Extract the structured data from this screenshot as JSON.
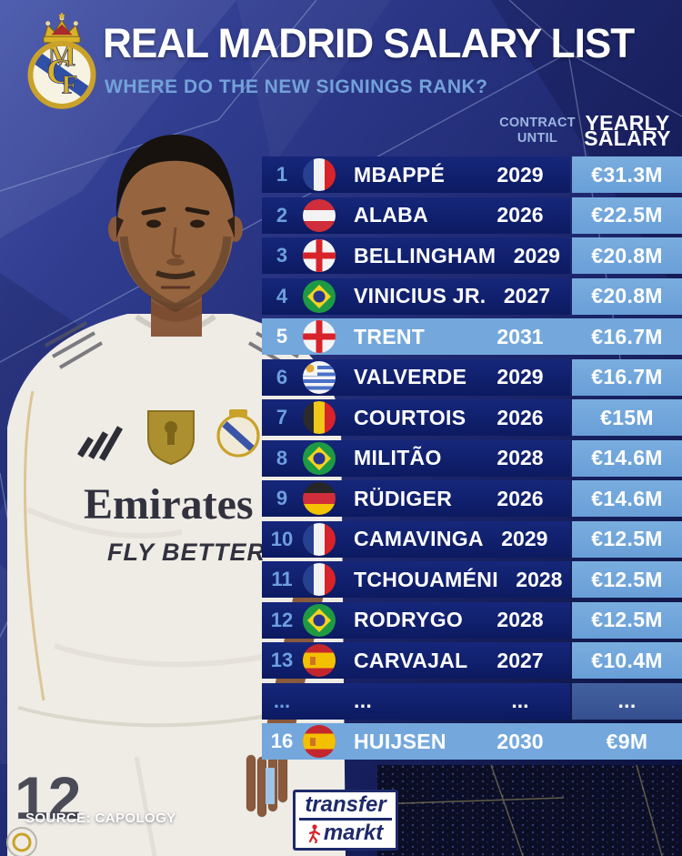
{
  "header": {
    "title": "REAL MADRID SALARY LIST",
    "subtitle": "WHERE DO THE NEW SIGNINGS RANK?",
    "crest_icon": "real-madrid-crest"
  },
  "table": {
    "columns": {
      "contract": [
        "CONTRACT",
        "UNTIL"
      ],
      "salary": [
        "YEARLY",
        "SALARY"
      ]
    },
    "rows": [
      {
        "rank": "1",
        "flag": "france",
        "name": "MBAPPÉ",
        "contract": "2029",
        "salary": "€31.3M",
        "highlight": false
      },
      {
        "rank": "2",
        "flag": "austria",
        "name": "ALABA",
        "contract": "2026",
        "salary": "€22.5M",
        "highlight": false
      },
      {
        "rank": "3",
        "flag": "england",
        "name": "BELLINGHAM",
        "contract": "2029",
        "salary": "€20.8M",
        "highlight": false
      },
      {
        "rank": "4",
        "flag": "brazil",
        "name": "VINICIUS JR.",
        "contract": "2027",
        "salary": "€20.8M",
        "highlight": false
      },
      {
        "rank": "5",
        "flag": "england",
        "name": "TRENT",
        "contract": "2031",
        "salary": "€16.7M",
        "highlight": true
      },
      {
        "rank": "6",
        "flag": "uruguay",
        "name": "VALVERDE",
        "contract": "2029",
        "salary": "€16.7M",
        "highlight": false
      },
      {
        "rank": "7",
        "flag": "belgium",
        "name": "COURTOIS",
        "contract": "2026",
        "salary": "€15M",
        "highlight": false
      },
      {
        "rank": "8",
        "flag": "brazil",
        "name": "MILITÃO",
        "contract": "2028",
        "salary": "€14.6M",
        "highlight": false
      },
      {
        "rank": "9",
        "flag": "germany",
        "name": "RÜDIGER",
        "contract": "2026",
        "salary": "€14.6M",
        "highlight": false
      },
      {
        "rank": "10",
        "flag": "france",
        "name": "CAMAVINGA",
        "contract": "2029",
        "salary": "€12.5M",
        "highlight": false
      },
      {
        "rank": "11",
        "flag": "france",
        "name": "TCHOUAMÉNI",
        "contract": "2028",
        "salary": "€12.5M",
        "highlight": false
      },
      {
        "rank": "12",
        "flag": "brazil",
        "name": "RODRYGO",
        "contract": "2028",
        "salary": "€12.5M",
        "highlight": false
      },
      {
        "rank": "13",
        "flag": "spain",
        "name": "CARVAJAL",
        "contract": "2027",
        "salary": "€10.4M",
        "highlight": false
      },
      {
        "rank": "...",
        "flag": null,
        "name": "...",
        "contract": "...",
        "salary": "...",
        "highlight": false,
        "ellipsis": true
      },
      {
        "rank": "16",
        "flag": "spain",
        "name": "HUIJSEN",
        "contract": "2030",
        "salary": "€9M",
        "highlight": true
      }
    ]
  },
  "player": {
    "jersey_sponsor": "Emirates",
    "jersey_tagline": "FLY BETTER",
    "shorts_number": "12",
    "icons": [
      "adidas-logo",
      "club-world-cup-badge",
      "real-madrid-crest"
    ]
  },
  "footer": {
    "source": "SOURCE: CAPOLOGY",
    "logo_line1": "transfer",
    "logo_line2": "markt",
    "logo_icon": "transfermarkt-logo",
    "runner_icon": "runner-icon"
  },
  "colors": {
    "row_bg": "#0e1d66",
    "row_highlight": "#74a8dc",
    "salary_cell": "#6fa5dd",
    "ellipsis_salary_cell": "#3c59a6",
    "rank_text": "#6d9fdd",
    "subtitle_text": "#73a2da",
    "column_header_text": "#9cb6e2",
    "background_base": "#27327f",
    "crowd_dark": "#0b0e24"
  }
}
